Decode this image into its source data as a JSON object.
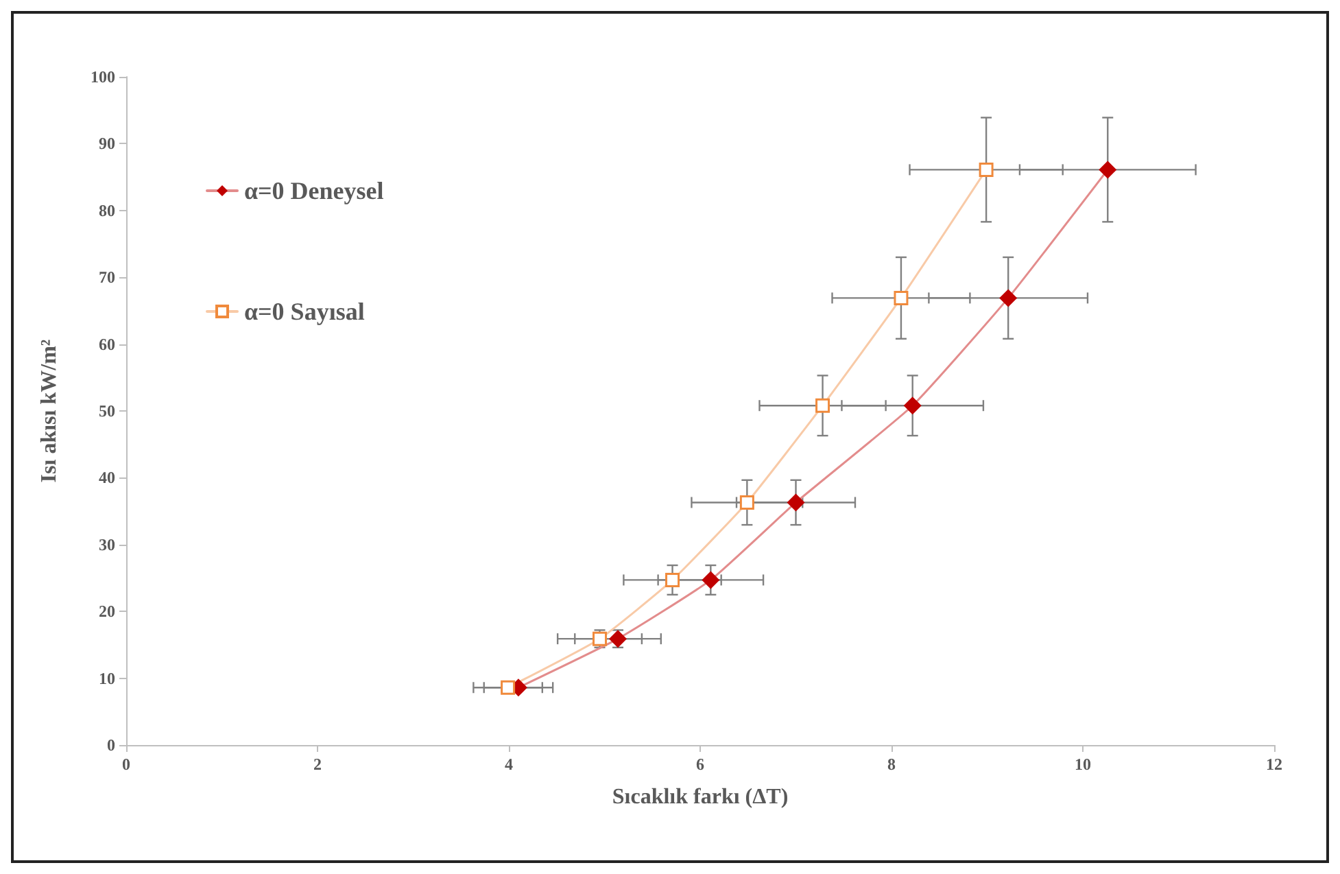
{
  "chart_data": {
    "type": "line",
    "xlabel": "Sıcaklık farkı (ΔT)",
    "ylabel": "Isı akısı kW/m²",
    "xlim": [
      0,
      12
    ],
    "xticks": [
      0,
      2,
      4,
      6,
      8,
      10,
      12
    ],
    "ylim": [
      0,
      100
    ],
    "yticks": [
      0,
      10,
      20,
      30,
      40,
      50,
      60,
      70,
      80,
      90,
      100
    ],
    "grid": false,
    "legend": "top left",
    "line_style": "solid",
    "series": [
      {
        "name": "α=0 Deneysel",
        "marker": "diamond",
        "color": "#c00000",
        "x": [
          4.1,
          5.14,
          6.11,
          7.0,
          8.22,
          9.22,
          10.26
        ],
        "values": [
          8.6,
          15.9,
          24.7,
          36.3,
          50.8,
          66.9,
          86.1
        ],
        "errors": [
          null,
          1.3,
          2.2,
          3.35,
          4.5,
          6.1,
          7.8
        ],
        "xerrors": [
          0.36,
          0.45,
          0.55,
          0.62,
          0.74,
          0.83,
          0.92
        ]
      },
      {
        "name": "α=0 Sayısal",
        "marker": "square",
        "color": "#f08a3c",
        "x": [
          3.99,
          4.95,
          5.71,
          6.49,
          7.28,
          8.1,
          8.99
        ],
        "values": [
          8.6,
          15.9,
          24.7,
          36.3,
          50.8,
          66.9,
          86.1
        ],
        "errors": [
          null,
          1.3,
          2.2,
          3.35,
          4.5,
          6.1,
          7.8
        ],
        "xerrors": [
          0.36,
          0.44,
          0.51,
          0.58,
          0.66,
          0.72,
          0.8
        ]
      }
    ]
  }
}
